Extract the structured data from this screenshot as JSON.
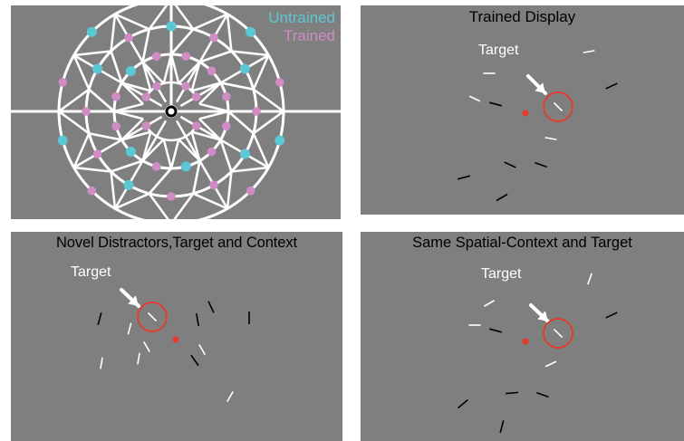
{
  "legend": {
    "untrained": "Untrained",
    "trained": "Trained"
  },
  "colors": {
    "panel_bg": "#7f7f7f",
    "untrained": "#5bc8d6",
    "trained": "#d08cc6",
    "target_circle": "#e8392b",
    "fixation": "#e8392b",
    "bright_line": "#ffffff",
    "dark_line": "#000000"
  },
  "panels": {
    "trained": {
      "title": "Trained Display",
      "target_label": "Target"
    },
    "novel": {
      "title": "Novel Distractors,Target and Context",
      "target_label": "Target"
    },
    "same": {
      "title": "Same Spatial-Context and Target",
      "target_label": "Target"
    }
  }
}
